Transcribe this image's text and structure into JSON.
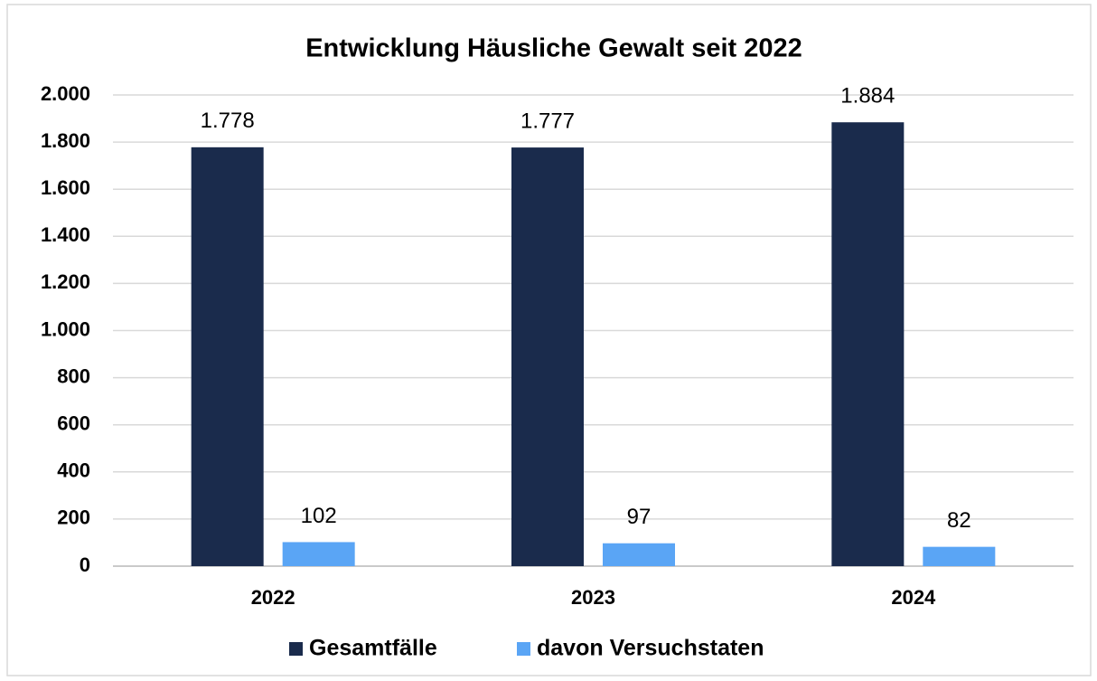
{
  "chart_data": {
    "type": "bar",
    "title": "Entwicklung Häusliche Gewalt seit 2022",
    "categories": [
      "2022",
      "2023",
      "2024"
    ],
    "series": [
      {
        "name": "Gesamtfälle",
        "color": "#1a2b4c",
        "values": [
          1778,
          1777,
          1884
        ],
        "value_labels": [
          "1.778",
          "1.777",
          "1.884"
        ]
      },
      {
        "name": "davon Versuchstaten",
        "color": "#5aa5f5",
        "values": [
          102,
          97,
          82
        ],
        "value_labels": [
          "102",
          "97",
          "82"
        ]
      }
    ],
    "ylim": [
      0,
      2000
    ],
    "yticks": [
      0,
      200,
      400,
      600,
      800,
      {
        "value": 1000,
        "label": "1.000"
      },
      {
        "value": 1200,
        "label": "1.200"
      },
      {
        "value": 1400,
        "label": "1.400"
      },
      {
        "value": 1600,
        "label": "1.600"
      },
      {
        "value": 1800,
        "label": "1.800"
      },
      {
        "value": 2000,
        "label": "2.000"
      }
    ],
    "grid": true,
    "legend": "bottom"
  }
}
